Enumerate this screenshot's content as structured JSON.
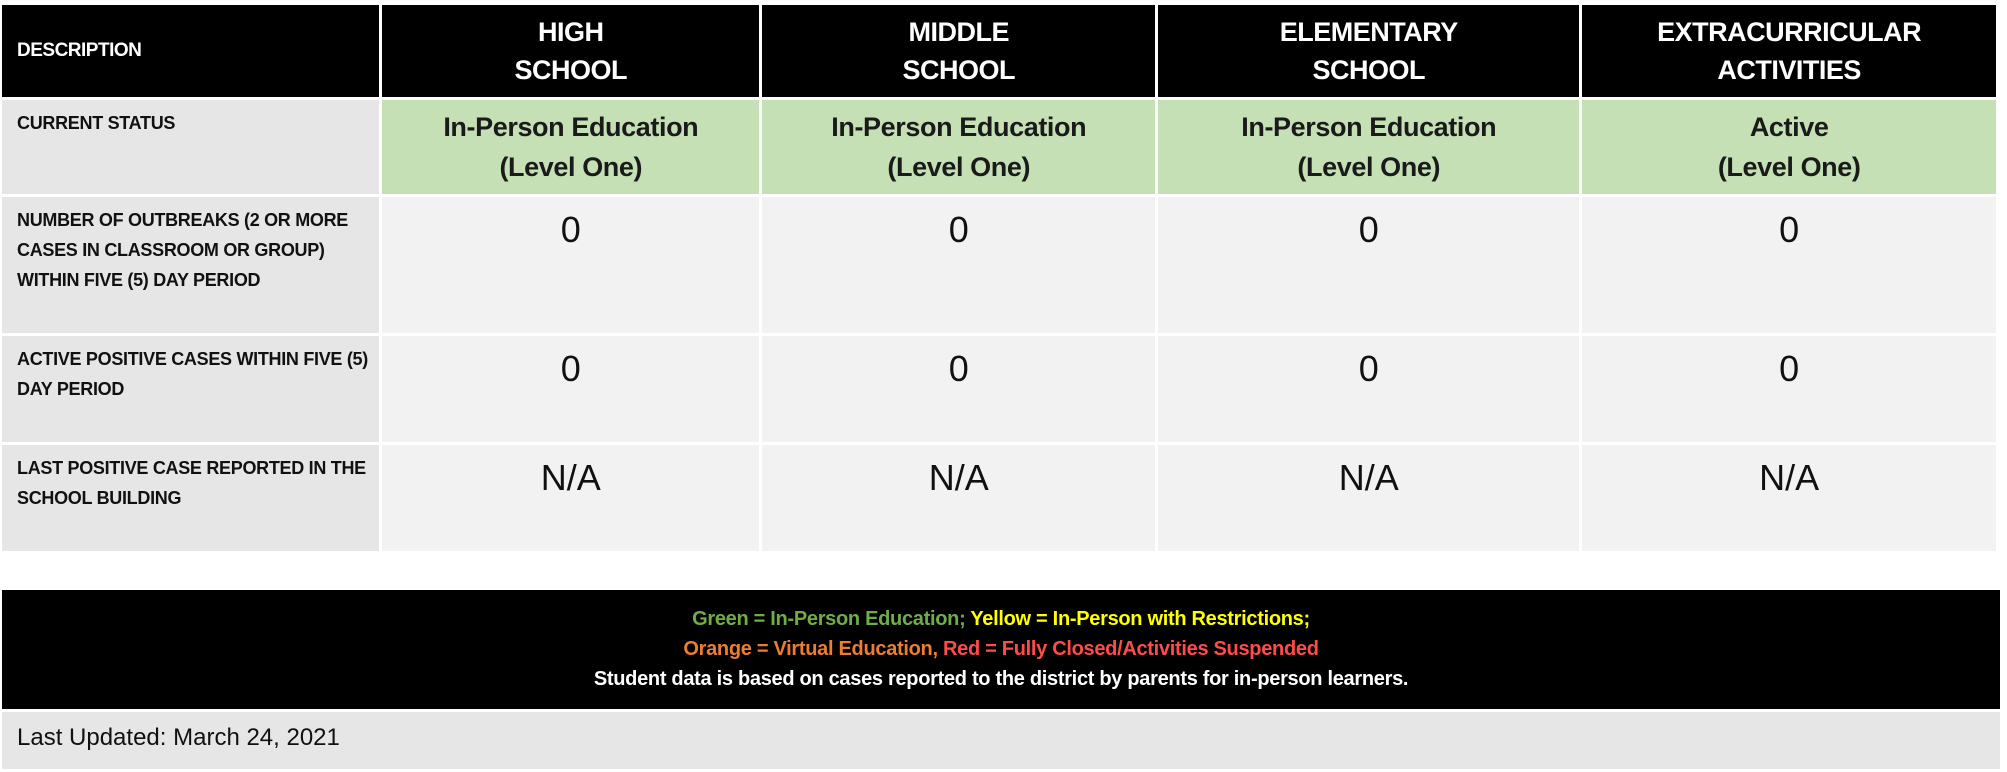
{
  "header": {
    "description": "DESCRIPTION",
    "columns": [
      {
        "line1": "HIGH",
        "line2": "SCHOOL"
      },
      {
        "line1": "MIDDLE",
        "line2": "SCHOOL"
      },
      {
        "line1": "ELEMENTARY",
        "line2": "SCHOOL"
      },
      {
        "line1": "EXTRACURRICULAR",
        "line2": "ACTIVITIES"
      }
    ]
  },
  "rows": {
    "status": {
      "label": "CURRENT STATUS",
      "values": [
        {
          "line1": "In-Person Education",
          "line2": "(Level One)"
        },
        {
          "line1": "In-Person Education",
          "line2": "(Level One)"
        },
        {
          "line1": "In-Person Education",
          "line2": "(Level One)"
        },
        {
          "line1": "Active",
          "line2": "(Level One)"
        }
      ]
    },
    "outbreaks": {
      "label": "NUMBER OF OUTBREAKS (2 OR MORE CASES IN CLASSROOM OR GROUP) WITHIN FIVE (5) DAY PERIOD",
      "values": [
        "0",
        "0",
        "0",
        "0"
      ]
    },
    "active": {
      "label": "ACTIVE POSITIVE CASES WITHIN FIVE (5) DAY PERIOD",
      "values": [
        "0",
        "0",
        "0",
        "0"
      ]
    },
    "last_case": {
      "label": "LAST POSITIVE CASE REPORTED IN THE SCHOOL BUILDING",
      "values": [
        "N/A",
        "N/A",
        "N/A",
        "N/A"
      ]
    }
  },
  "legend": {
    "green": "Green = In-Person Education;",
    "yellow": "Yellow = In-Person with Restrictions;",
    "orange": "Orange = Virtual Education,",
    "red": "Red = Fully Closed/Activities Suspended",
    "note": "Student data is based on cases reported to the district by parents for in-person learners."
  },
  "last_updated": "Last Updated: March 24, 2021",
  "colors": {
    "status_green": "#c5e0b4",
    "header_bg": "#000000",
    "label_bg": "#e7e6e6",
    "cell_bg": "#f2f2f2",
    "legend_green": "#70ad47",
    "legend_yellow": "#ffff00",
    "legend_orange": "#ed7d31",
    "legend_red": "#ff4b4b"
  }
}
